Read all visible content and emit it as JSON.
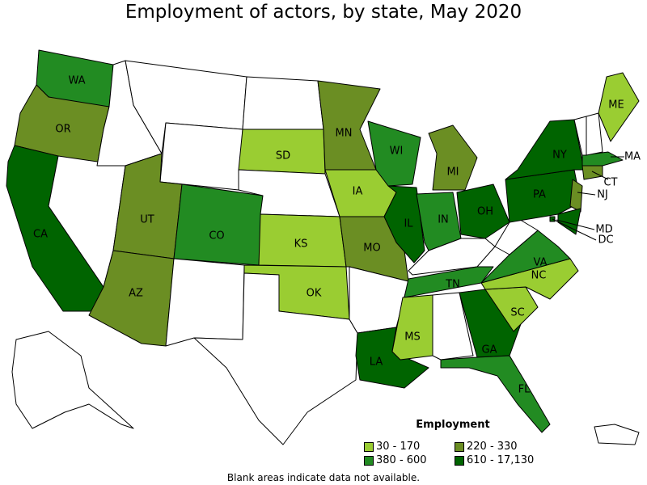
{
  "title": "Employment of actors, by state, May 2020",
  "legend": {
    "title": "Employment",
    "bins": [
      {
        "label": "30 - 170",
        "color": "#9acd32"
      },
      {
        "label": "220 - 330",
        "color": "#6b8e23"
      },
      {
        "label": "380 - 600",
        "color": "#228b22"
      },
      {
        "label": "610 - 17,130",
        "color": "#006400"
      }
    ]
  },
  "note": "Blank areas indicate data not available.",
  "states": {
    "WA": {
      "bin": 2
    },
    "OR": {
      "bin": 1
    },
    "CA": {
      "bin": 3
    },
    "NV": {
      "bin": null
    },
    "ID": {
      "bin": null
    },
    "MT": {
      "bin": null
    },
    "WY": {
      "bin": null
    },
    "UT": {
      "bin": 1
    },
    "AZ": {
      "bin": 1
    },
    "CO": {
      "bin": 2
    },
    "NM": {
      "bin": null
    },
    "ND": {
      "bin": null
    },
    "SD": {
      "bin": 0
    },
    "NE": {
      "bin": null
    },
    "KS": {
      "bin": 0
    },
    "OK": {
      "bin": 0
    },
    "TX": {
      "bin": null
    },
    "MN": {
      "bin": 1
    },
    "IA": {
      "bin": 0
    },
    "MO": {
      "bin": 1
    },
    "AR": {
      "bin": null
    },
    "LA": {
      "bin": 3
    },
    "WI": {
      "bin": 2
    },
    "IL": {
      "bin": 3
    },
    "MI": {
      "bin": 1
    },
    "IN": {
      "bin": 2
    },
    "OH": {
      "bin": 3
    },
    "KY": {
      "bin": null
    },
    "TN": {
      "bin": 2
    },
    "MS": {
      "bin": 0
    },
    "AL": {
      "bin": null
    },
    "GA": {
      "bin": 3
    },
    "FL": {
      "bin": 2
    },
    "SC": {
      "bin": 0
    },
    "NC": {
      "bin": 0
    },
    "VA": {
      "bin": 2
    },
    "WV": {
      "bin": null
    },
    "PA": {
      "bin": 3
    },
    "NY": {
      "bin": 3
    },
    "NJ": {
      "bin": 1
    },
    "MD": {
      "bin": 3
    },
    "DC": {
      "bin": 3
    },
    "CT": {
      "bin": 1
    },
    "MA": {
      "bin": 2
    },
    "VT": {
      "bin": null
    },
    "NH": {
      "bin": null
    },
    "ME": {
      "bin": 0
    },
    "AK": {
      "bin": null
    },
    "HI": {
      "bin": null
    }
  }
}
